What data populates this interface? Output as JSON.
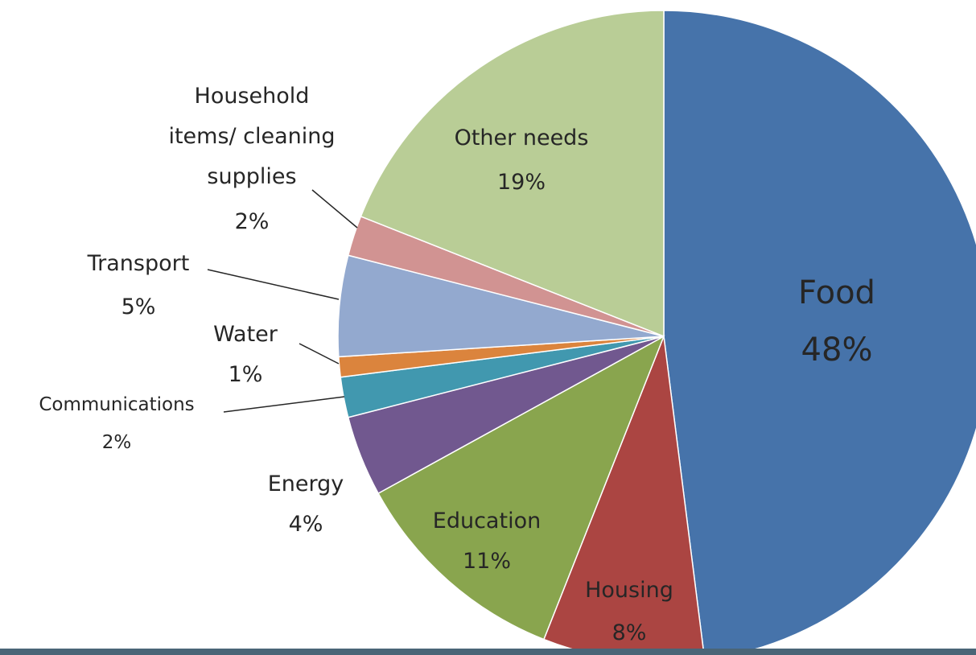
{
  "chart_data": {
    "type": "pie",
    "title": "",
    "slices": [
      {
        "label": "Food",
        "value": 48,
        "value_label": "48%",
        "color": "#4673aa"
      },
      {
        "label": "Housing",
        "value": 8,
        "value_label": "8%",
        "color": "#ab4542"
      },
      {
        "label": "Education",
        "value": 11,
        "value_label": "11%",
        "color": "#89a54e"
      },
      {
        "label": "Energy",
        "value": 4,
        "value_label": "4%",
        "color": "#71588f"
      },
      {
        "label": "Communications",
        "value": 2,
        "value_label": "2%",
        "color": "#4198af"
      },
      {
        "label": "Water",
        "value": 1,
        "value_label": "1%",
        "color": "#db843d"
      },
      {
        "label": "Transport",
        "value": 5,
        "value_label": "5%",
        "color": "#93a9cf"
      },
      {
        "label": "Household items/ cleaning supplies",
        "value": 2,
        "value_label": "2%",
        "color": "#d19392"
      },
      {
        "label": "Other needs",
        "value": 19,
        "value_label": "19%",
        "color": "#b9cd96"
      }
    ],
    "start": "12 o'clock",
    "direction": "clockwise",
    "legend": "none",
    "labels": "category name and percentage beside each slice, leader lines for small slices"
  }
}
